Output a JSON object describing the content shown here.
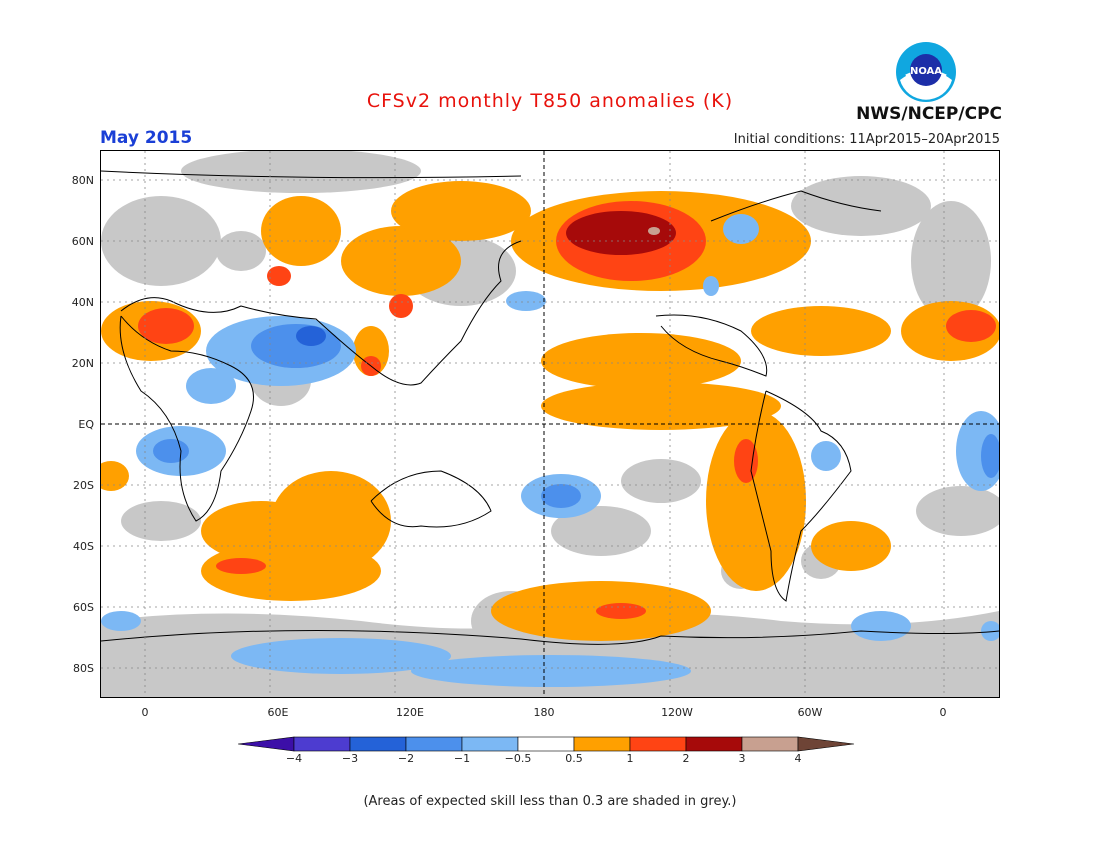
{
  "title": "CFSv2 monthly T850 anomalies (K)",
  "month": "May 2015",
  "initial_conditions": "Initial conditions: 11Apr2015–20Apr2015",
  "agency": "NWS/NCEP/CPC",
  "logo_text": "NOAA",
  "lat_labels": [
    "80N",
    "60N",
    "40N",
    "20N",
    "EQ",
    "20S",
    "40S",
    "60S",
    "80S"
  ],
  "lon_labels": [
    "0",
    "60E",
    "120E",
    "180",
    "120W",
    "60W",
    "0"
  ],
  "colorbar": {
    "labels": [
      "−4",
      "−3",
      "−2",
      "−1",
      "−0.5",
      "0.5",
      "1",
      "2",
      "3",
      "4"
    ],
    "colors": [
      "#3c0fa8",
      "#4d3cd0",
      "#2462d8",
      "#4c90ec",
      "#7cb8f4",
      "#ffffff",
      "#ffa000",
      "#ff4414",
      "#a60a0a",
      "#c8a090",
      "#6e4436"
    ]
  },
  "grey_color": "#c8c8c8",
  "note": "(Areas of expected skill less than 0.3 are shaded in grey.)"
}
